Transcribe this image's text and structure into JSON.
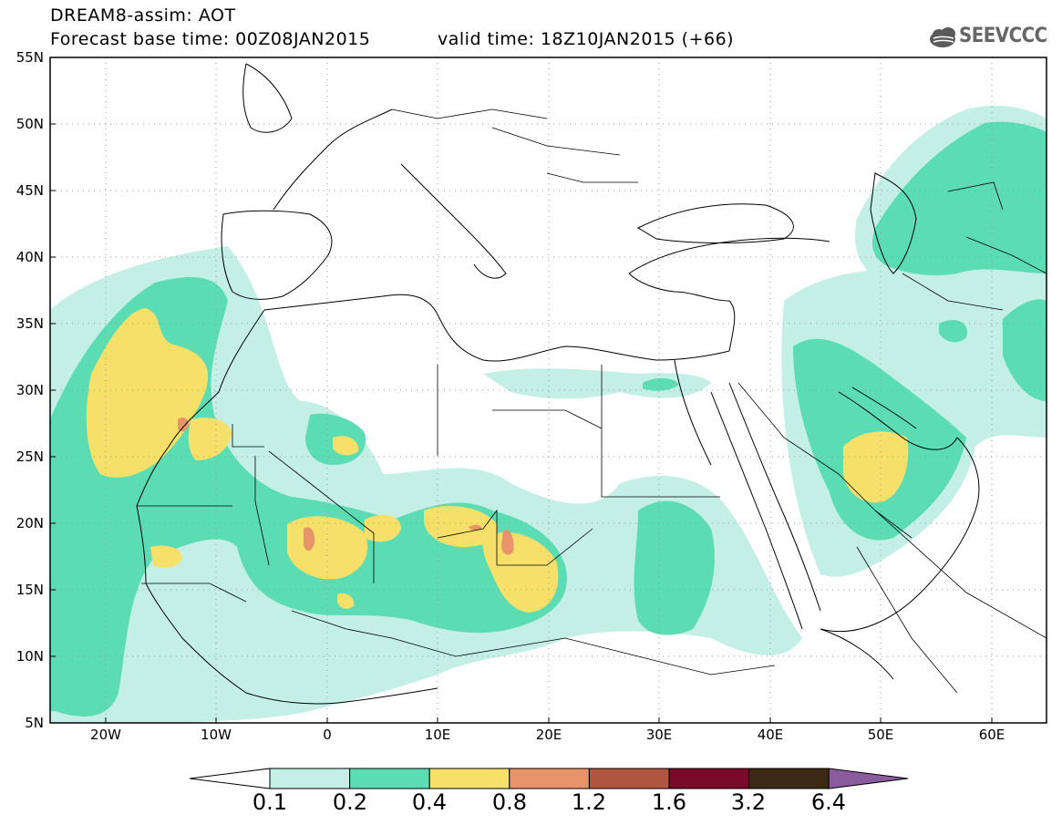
{
  "header": {
    "title": "DREAM8-assim: AOT",
    "base_time": "Forecast base time: 00Z08JAN2015",
    "valid_time": "valid time: 18Z10JAN2015 (+66)",
    "logo_text": "SEEVCCC"
  },
  "map": {
    "lat_labels": [
      "55N",
      "50N",
      "45N",
      "40N",
      "35N",
      "30N",
      "25N",
      "20N",
      "15N",
      "10N",
      "5N"
    ],
    "lon_labels": [
      "20W",
      "10W",
      "0",
      "10E",
      "20E",
      "30E",
      "40E",
      "50E",
      "60E"
    ]
  },
  "legend": {
    "labels": [
      "0.1",
      "0.2",
      "0.4",
      "0.8",
      "1.2",
      "1.6",
      "3.2",
      "6.4"
    ],
    "colors": [
      "#ffffff",
      "#c4efe6",
      "#5cdcb2",
      "#f6e06a",
      "#e8936a",
      "#b0553e",
      "#7a0a2a",
      "#3d2a14",
      "#8a5c9e"
    ]
  }
}
